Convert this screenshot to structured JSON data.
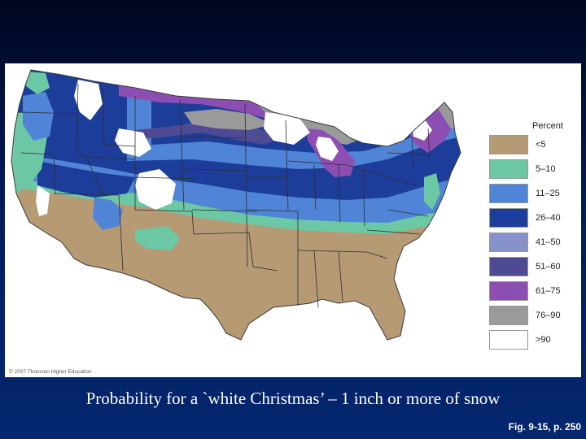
{
  "map": {
    "legend": {
      "title": "Percent",
      "items": [
        {
          "label": "<5",
          "color": "#b59a74"
        },
        {
          "label": "5–10",
          "color": "#6cc8a4"
        },
        {
          "label": "11–25",
          "color": "#4f84d6"
        },
        {
          "label": "26–40",
          "color": "#1c3e9a"
        },
        {
          "label": "41–50",
          "color": "#8792cc"
        },
        {
          "label": "51–60",
          "color": "#4e4a94"
        },
        {
          "label": "61–75",
          "color": "#8d4eb3"
        },
        {
          "label": "76–90",
          "color": "#9a9a9a"
        },
        {
          "label": ">90",
          "color": "#ffffff"
        }
      ]
    },
    "copyright": "© 2007 Thomson Higher Education"
  },
  "caption": "Probability for a `white Christmas’ – 1 inch or more of snow",
  "figure_ref": "Fig. 9-15, p. 250"
}
